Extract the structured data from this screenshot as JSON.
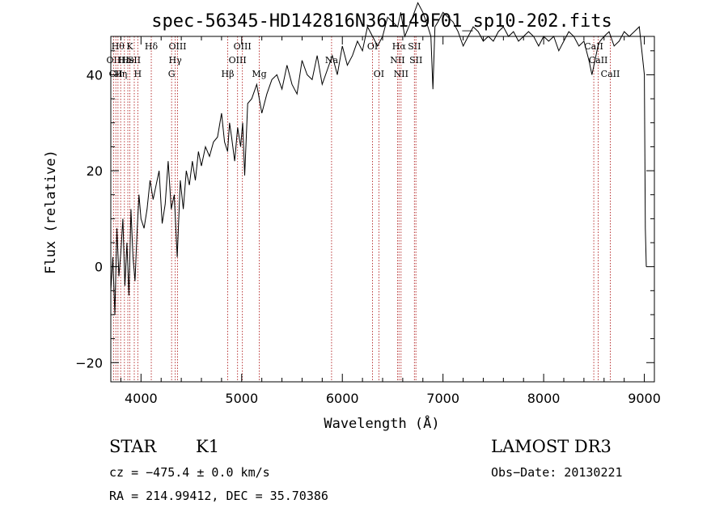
{
  "chart_data": {
    "type": "line",
    "title": "spec-56345-HD142816N361149F01_sp10-202.fits",
    "xlabel": "Wavelength (Å)",
    "ylabel": "Flux (relative)",
    "xlim": [
      3700,
      9100
    ],
    "ylim": [
      -24,
      48
    ],
    "x_ticks": [
      4000,
      5000,
      6000,
      7000,
      8000,
      9000
    ],
    "x_tick_labels": [
      "4000",
      "5000",
      "6000",
      "7000",
      "8000",
      "9000"
    ],
    "y_ticks": [
      -20,
      0,
      20,
      40
    ],
    "y_tick_labels": [
      "−20",
      "0",
      "20",
      "40"
    ],
    "grid": false,
    "series": [
      {
        "x": [
          3700,
          3720,
          3740,
          3760,
          3780,
          3800,
          3820,
          3840,
          3860,
          3880,
          3900,
          3920,
          3940,
          3960,
          3980,
          4000,
          4030,
          4060,
          4090,
          4120,
          4150,
          4180,
          4210,
          4240,
          4270,
          4300,
          4330,
          4360,
          4390,
          4420,
          4450,
          4480,
          4510,
          4540,
          4570,
          4600,
          4640,
          4680,
          4720,
          4760,
          4800,
          4830,
          4860,
          4880,
          4900,
          4930,
          4960,
          4990,
          5010,
          5030,
          5060,
          5100,
          5150,
          5200,
          5250,
          5300,
          5350,
          5400,
          5450,
          5500,
          5550,
          5600,
          5650,
          5700,
          5750,
          5800,
          5850,
          5900,
          5950,
          6000,
          6050,
          6100,
          6150,
          6200,
          6250,
          6300,
          6350,
          6400,
          6450,
          6500,
          6550,
          6580,
          6620,
          6680,
          6750,
          6800,
          6850,
          6880,
          6900,
          6920,
          6950,
          7000,
          7050,
          7100,
          7150,
          7200,
          7250,
          7300,
          7350,
          7400,
          7450,
          7500,
          7550,
          7600,
          7650,
          7700,
          7750,
          7800,
          7850,
          7900,
          7950,
          8000,
          8050,
          8100,
          8150,
          8200,
          8250,
          8300,
          8350,
          8400,
          8450,
          8480,
          8500,
          8520,
          8540,
          8560,
          8600,
          8650,
          8700,
          8750,
          8800,
          8850,
          8900,
          8950,
          8980,
          9000,
          9010,
          9020
        ],
        "y": [
          -5,
          2,
          -10,
          8,
          -2,
          3,
          10,
          -4,
          5,
          -6,
          12,
          2,
          -3,
          7,
          15,
          10,
          8,
          12,
          18,
          14,
          17,
          20,
          9,
          13,
          22,
          12,
          15,
          2,
          18,
          12,
          20,
          17,
          22,
          18,
          24,
          21,
          25,
          23,
          26,
          27,
          32,
          26,
          24,
          30,
          27,
          22,
          29,
          25,
          30,
          19,
          34,
          35,
          38,
          32,
          36,
          39,
          40,
          37,
          42,
          38,
          36,
          43,
          40,
          39,
          44,
          38,
          41,
          44,
          40,
          46,
          42,
          44,
          47,
          45,
          50,
          48,
          46,
          48,
          52,
          51,
          50,
          53,
          48,
          51,
          55,
          53,
          50,
          48,
          37,
          50,
          51,
          53,
          52,
          51,
          49,
          46,
          48,
          50,
          49,
          47,
          48,
          47,
          49,
          50,
          48,
          49,
          47,
          48,
          49,
          48,
          46,
          48,
          47,
          48,
          45,
          47,
          49,
          48,
          46,
          47,
          43,
          40,
          42,
          44,
          46,
          47,
          48,
          49,
          46,
          47,
          49,
          48,
          49,
          50,
          44,
          40,
          8,
          0
        ]
      }
    ],
    "lines": [
      {
        "x": 3727,
        "label": "OII",
        "row": 2
      },
      {
        "x": 3750,
        "label": "CII",
        "row": 3
      },
      {
        "x": 3771,
        "label": "Hθ",
        "row": 1
      },
      {
        "x": 3798,
        "label": "Hη",
        "row": 3
      },
      {
        "x": 3835,
        "label": "Hε",
        "row": 2
      },
      {
        "x": 3869,
        "label": "He",
        "row": 2
      },
      {
        "x": 3889,
        "label": "K",
        "row": 1
      },
      {
        "x": 3933,
        "label": "SII",
        "row": 2
      },
      {
        "x": 3968,
        "label": "H",
        "row": 3
      },
      {
        "x": 4102,
        "label": "Hδ",
        "row": 1
      },
      {
        "x": 4304,
        "label": "G",
        "row": 3
      },
      {
        "x": 4340,
        "label": "Hγ",
        "row": 2
      },
      {
        "x": 4363,
        "label": "OIII",
        "row": 1
      },
      {
        "x": 4861,
        "label": "Hβ",
        "row": 3
      },
      {
        "x": 4959,
        "label": "OIII",
        "row": 2
      },
      {
        "x": 5007,
        "label": "OIII",
        "row": 1
      },
      {
        "x": 5175,
        "label": "Mg",
        "row": 3
      },
      {
        "x": 5893,
        "label": "Na",
        "row": 2
      },
      {
        "x": 6300,
        "label": "OI",
        "row": 1
      },
      {
        "x": 6363,
        "label": "OI",
        "row": 3
      },
      {
        "x": 6548,
        "label": "NII",
        "row": 2
      },
      {
        "x": 6563,
        "label": "Hα",
        "row": 1
      },
      {
        "x": 6583,
        "label": "NII",
        "row": 3
      },
      {
        "x": 6716,
        "label": "SII",
        "row": 1
      },
      {
        "x": 6731,
        "label": "SII",
        "row": 2
      },
      {
        "x": 8498,
        "label": "CaII",
        "row": 1
      },
      {
        "x": 8542,
        "label": "CaII",
        "row": 2
      },
      {
        "x": 8662,
        "label": "CaII",
        "row": 3
      }
    ]
  },
  "info": {
    "object_type": "STAR",
    "subclass": "K1",
    "survey": "LAMOST DR3",
    "cz": "cz = −475.4 ± 0.0 km/s",
    "obs_date": "Obs−Date: 20130221",
    "coords": "RA = 214.99412, DEC =  35.70386"
  },
  "colors": {
    "spectrum": "#000000",
    "line_markers": "#b22222",
    "axes": "#000000"
  }
}
